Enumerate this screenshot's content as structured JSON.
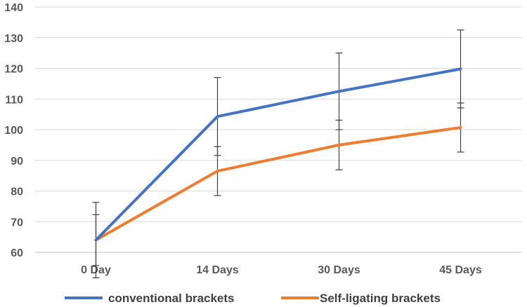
{
  "chart_data": {
    "type": "line",
    "title": "",
    "xlabel": "",
    "ylabel": "",
    "categories": [
      "0 Day",
      "14 Days",
      "30 Days",
      "45 Days"
    ],
    "ylim": [
      60,
      140
    ],
    "yticks": [
      60,
      70,
      80,
      90,
      100,
      110,
      120,
      130,
      140
    ],
    "grid": true,
    "legend_position": "bottom",
    "series": [
      {
        "name": "conventional brackets",
        "color": "#4472C4",
        "values": [
          64,
          104.3,
          112.5,
          119.8
        ],
        "error": [
          12.3,
          12.7,
          12.5,
          12.7
        ]
      },
      {
        "name": "Self-ligating brackets",
        "color": "#ED7D31",
        "values": [
          64,
          86.5,
          95,
          100.7
        ],
        "error": [
          8.3,
          8,
          8.1,
          8
        ]
      }
    ]
  }
}
